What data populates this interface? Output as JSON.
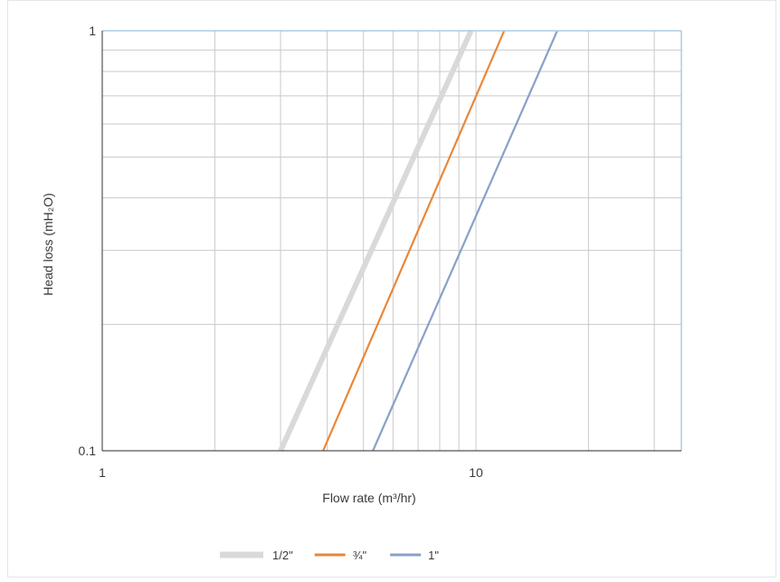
{
  "chart_data": {
    "type": "line",
    "title": "",
    "xlabel": "Flow rate (m³/hr)",
    "ylabel": "Head loss (mH₂O)",
    "xscale": "log",
    "yscale": "log",
    "xlim": [
      1,
      30
    ],
    "ylim": [
      0.1,
      1
    ],
    "grid": true,
    "legend_position": "bottom-center",
    "x_ticks": [
      {
        "value": 1,
        "label": "1"
      },
      {
        "value": 10,
        "label": "10"
      }
    ],
    "y_ticks": [
      {
        "value": 1,
        "label": "1"
      },
      {
        "value": 0.1,
        "label": "0.1"
      }
    ],
    "series": [
      {
        "name": "1/2\"",
        "color": "#d9d9d9",
        "style": "thick",
        "points": [
          [
            3.0,
            0.1
          ],
          [
            9.7,
            1.0
          ]
        ]
      },
      {
        "name": "¾\"",
        "color": "#e8873a",
        "style": "normal",
        "points": [
          [
            3.9,
            0.1
          ],
          [
            11.9,
            1.0
          ]
        ]
      },
      {
        "name": "1\"",
        "color": "#8aa0c8",
        "style": "normal",
        "points": [
          [
            5.3,
            0.1
          ],
          [
            16.5,
            1.0
          ]
        ]
      }
    ]
  },
  "colors": {
    "grid": "#c9c9c9",
    "border": "#aecbe3",
    "axis": "#555555"
  }
}
